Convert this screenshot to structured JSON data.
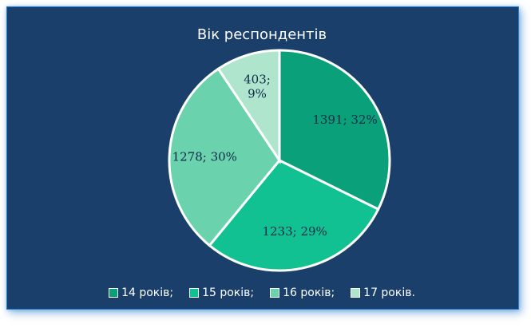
{
  "chart_data": {
    "type": "pie",
    "title": "Вік респондентів",
    "categories": [
      "14 років;",
      "15 років;",
      "16 років;",
      "17 років."
    ],
    "values": [
      1391,
      1233,
      1278,
      403
    ],
    "data_labels": [
      "1391; 32%",
      "1233; 29%",
      "1278; 30%",
      "403;\n9%"
    ],
    "colors": [
      "#0aa079",
      "#12c191",
      "#6ad3ad",
      "#b0e5cd"
    ],
    "legend_position": "bottom"
  },
  "colors": {
    "background": "#1a3f6b",
    "slice_border": "#ffffff",
    "label_text": "#0b2a4a"
  }
}
